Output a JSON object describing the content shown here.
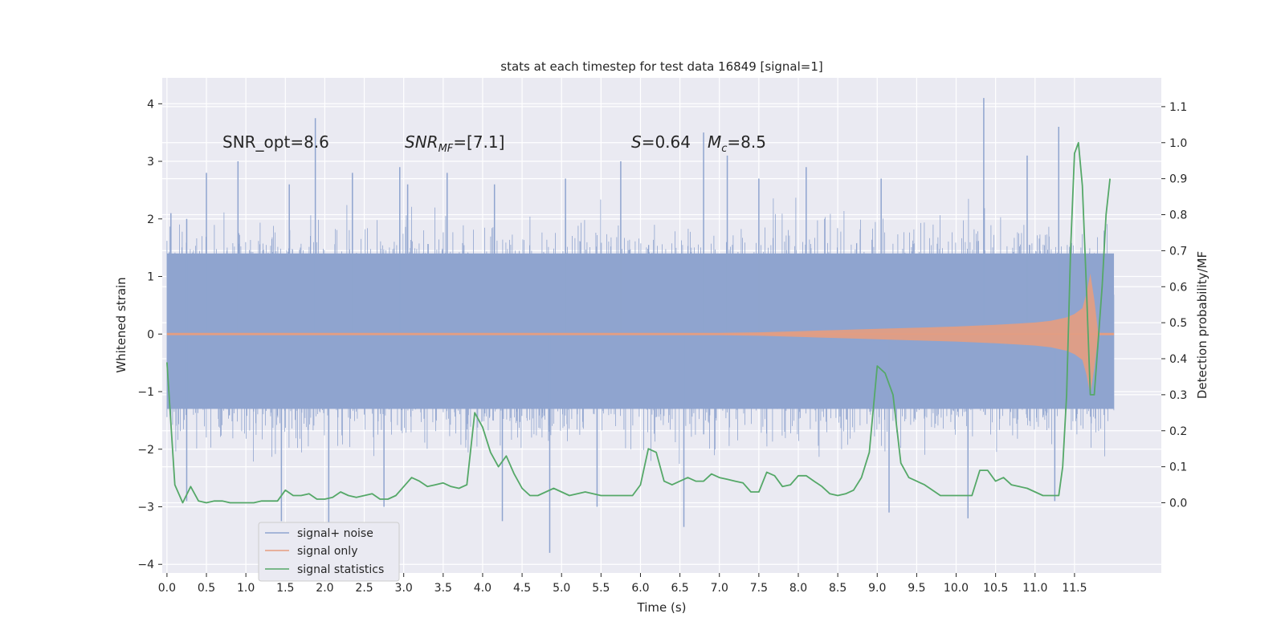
{
  "chart_data": {
    "type": "line",
    "title": "stats at each timestep for test data 16849 [signal=1]",
    "xlabel": "Time (s)",
    "ylabel_left": "Whitened strain",
    "ylabel_right": "Detection probability/MF",
    "xlim": [
      -0.06,
      12.6
    ],
    "ylim_left": [
      -4.15,
      4.45
    ],
    "ylim_right": [
      -0.195,
      1.18
    ],
    "x_ticks": [
      "0.0",
      "0.5",
      "1.0",
      "1.5",
      "2.0",
      "2.5",
      "3.0",
      "3.5",
      "4.0",
      "4.5",
      "5.0",
      "5.5",
      "6.0",
      "6.5",
      "7.0",
      "7.5",
      "8.0",
      "8.5",
      "9.0",
      "9.5",
      "10.0",
      "10.5",
      "11.0",
      "11.5"
    ],
    "y_ticks_left": [
      "4",
      "3",
      "2",
      "1",
      "0",
      "−1",
      "−2",
      "−3",
      "−4"
    ],
    "y_ticks_right": [
      "1.1",
      "1.0",
      "0.9",
      "0.8",
      "0.7",
      "0.6",
      "0.5",
      "0.4",
      "0.3",
      "0.2",
      "0.1",
      "0.0"
    ],
    "grid": true,
    "legend_position": "lower-left",
    "annotations": {
      "snr_opt": "SNR_opt=8.6",
      "snr_mf_main": "SNR",
      "snr_mf_sub": "MF",
      "snr_mf_rest": "=[7.1]",
      "s_main": "S",
      "s_rest": "=0.64",
      "mc_main": "M",
      "mc_sub": "c",
      "mc_rest": "=8.5"
    },
    "series": [
      {
        "name": "signal+ noise",
        "axis": "left",
        "color": "#8fa4cf",
        "description_values": {
          "x_start": 0.0,
          "x_end": 12.0,
          "band_dense": [
            -1.3,
            1.4
          ],
          "peaks_max": 4.1,
          "peaks_min": -3.8
        },
        "notable_peaks": [
          [
            0.05,
            2.1
          ],
          [
            0.25,
            2.0
          ],
          [
            0.5,
            2.8
          ],
          [
            0.9,
            3.0
          ],
          [
            1.55,
            2.6
          ],
          [
            1.88,
            3.75
          ],
          [
            2.35,
            2.8
          ],
          [
            2.95,
            2.9
          ],
          [
            3.05,
            2.6
          ],
          [
            3.55,
            2.8
          ],
          [
            4.15,
            2.6
          ],
          [
            5.05,
            2.7
          ],
          [
            5.75,
            3.0
          ],
          [
            6.8,
            3.5
          ],
          [
            7.1,
            3.1
          ],
          [
            7.5,
            2.7
          ],
          [
            8.1,
            2.9
          ],
          [
            9.05,
            2.7
          ],
          [
            10.35,
            4.1
          ],
          [
            10.9,
            3.1
          ],
          [
            11.3,
            3.6
          ],
          [
            0.25,
            -2.9
          ],
          [
            1.45,
            -3.25
          ],
          [
            2.05,
            -3.3
          ],
          [
            2.75,
            -3.0
          ],
          [
            4.25,
            -3.25
          ],
          [
            4.85,
            -3.8
          ],
          [
            5.45,
            -3.0
          ],
          [
            6.55,
            -3.35
          ],
          [
            9.15,
            -3.1
          ],
          [
            10.15,
            -3.2
          ],
          [
            11.25,
            -2.9
          ]
        ]
      },
      {
        "name": "signal only",
        "axis": "left",
        "color": "#e69d80",
        "envelope_x": [
          0.0,
          7.0,
          7.5,
          8.0,
          8.5,
          9.0,
          9.5,
          10.0,
          10.5,
          11.0,
          11.2,
          11.4,
          11.5,
          11.6,
          11.65,
          11.7,
          11.75,
          11.8,
          12.0
        ],
        "envelope_amp": [
          0.02,
          0.02,
          0.03,
          0.05,
          0.07,
          0.09,
          0.11,
          0.13,
          0.16,
          0.2,
          0.23,
          0.29,
          0.35,
          0.45,
          0.7,
          1.05,
          0.6,
          0.02,
          0.02
        ]
      },
      {
        "name": "signal statistics",
        "axis": "right",
        "color": "#55a868",
        "x": [
          0.0,
          0.1,
          0.2,
          0.3,
          0.4,
          0.5,
          0.6,
          0.7,
          0.8,
          0.9,
          1.0,
          1.1,
          1.2,
          1.3,
          1.4,
          1.5,
          1.6,
          1.7,
          1.8,
          1.9,
          2.0,
          2.1,
          2.2,
          2.3,
          2.4,
          2.5,
          2.6,
          2.7,
          2.8,
          2.9,
          3.0,
          3.1,
          3.2,
          3.3,
          3.4,
          3.5,
          3.6,
          3.7,
          3.8,
          3.9,
          4.0,
          4.1,
          4.2,
          4.3,
          4.4,
          4.5,
          4.6,
          4.7,
          4.8,
          4.9,
          5.0,
          5.1,
          5.2,
          5.3,
          5.4,
          5.5,
          5.6,
          5.7,
          5.8,
          5.9,
          6.0,
          6.1,
          6.2,
          6.3,
          6.4,
          6.5,
          6.6,
          6.7,
          6.8,
          6.9,
          7.0,
          7.1,
          7.2,
          7.3,
          7.4,
          7.5,
          7.6,
          7.7,
          7.8,
          7.9,
          8.0,
          8.1,
          8.2,
          8.3,
          8.4,
          8.5,
          8.6,
          8.7,
          8.8,
          8.9,
          9.0,
          9.1,
          9.2,
          9.3,
          9.4,
          9.5,
          9.6,
          9.7,
          9.8,
          9.9,
          10.0,
          10.1,
          10.2,
          10.3,
          10.4,
          10.5,
          10.6,
          10.7,
          10.8,
          10.9,
          11.0,
          11.1,
          11.2,
          11.3,
          11.35,
          11.4,
          11.45,
          11.5,
          11.55,
          11.6,
          11.65,
          11.7,
          11.75,
          11.8,
          11.85,
          11.9,
          11.95
        ],
        "values": [
          0.39,
          0.05,
          0.0,
          0.045,
          0.005,
          0.0,
          0.005,
          0.005,
          0.0,
          0.0,
          0.0,
          0.0,
          0.005,
          0.005,
          0.005,
          0.035,
          0.02,
          0.02,
          0.025,
          0.01,
          0.01,
          0.015,
          0.03,
          0.02,
          0.015,
          0.02,
          0.025,
          0.01,
          0.01,
          0.02,
          0.045,
          0.07,
          0.06,
          0.045,
          0.05,
          0.055,
          0.045,
          0.04,
          0.05,
          0.25,
          0.21,
          0.14,
          0.1,
          0.13,
          0.08,
          0.04,
          0.02,
          0.02,
          0.03,
          0.04,
          0.03,
          0.02,
          0.025,
          0.03,
          0.025,
          0.02,
          0.02,
          0.02,
          0.02,
          0.02,
          0.05,
          0.15,
          0.14,
          0.06,
          0.05,
          0.06,
          0.07,
          0.06,
          0.06,
          0.08,
          0.07,
          0.065,
          0.06,
          0.055,
          0.03,
          0.03,
          0.085,
          0.075,
          0.045,
          0.05,
          0.075,
          0.075,
          0.06,
          0.045,
          0.025,
          0.02,
          0.025,
          0.035,
          0.07,
          0.14,
          0.38,
          0.36,
          0.3,
          0.11,
          0.07,
          0.06,
          0.05,
          0.035,
          0.02,
          0.02,
          0.02,
          0.02,
          0.02,
          0.09,
          0.09,
          0.06,
          0.07,
          0.05,
          0.045,
          0.04,
          0.03,
          0.02,
          0.02,
          0.02,
          0.1,
          0.3,
          0.7,
          0.97,
          1.0,
          0.88,
          0.6,
          0.3,
          0.3,
          0.45,
          0.6,
          0.8,
          0.9
        ]
      }
    ]
  }
}
